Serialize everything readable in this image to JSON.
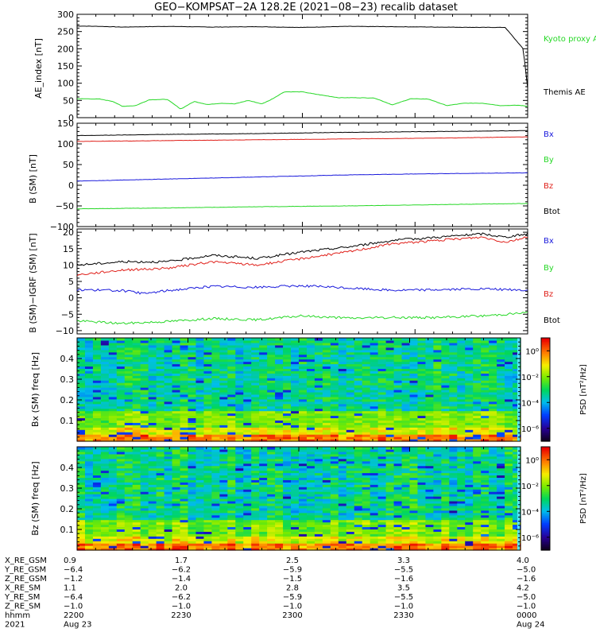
{
  "title": "GEO−KOMPSAT−2A 128.2E (2021−08−23) recalib dataset",
  "colors": {
    "black": "#000000",
    "red": "#e0201a",
    "blue": "#1a1adc",
    "green": "#27d827"
  },
  "chart_data": [
    {
      "type": "line",
      "ylabel": "AE_index [nT]",
      "ylim": [
        0,
        300
      ],
      "yticks": [
        "0",
        "50",
        "100",
        "150",
        "200",
        "250",
        "300"
      ],
      "legend": [
        "Kyoto proxy AE",
        "Themis AE"
      ],
      "series": [
        {
          "name": "Themis AE",
          "color": "#000000",
          "x": [
            0,
            0.05,
            0.1,
            0.2,
            0.3,
            0.4,
            0.5,
            0.6,
            0.7,
            0.8,
            0.9,
            0.95,
            0.99,
            1.0
          ],
          "y": [
            266,
            265,
            263,
            265,
            263,
            264,
            262,
            265,
            264,
            263,
            262,
            262,
            200,
            85
          ]
        },
        {
          "name": "Kyoto proxy AE",
          "color": "#27d827",
          "x": [
            0,
            0.05,
            0.08,
            0.1,
            0.13,
            0.16,
            0.2,
            0.23,
            0.26,
            0.29,
            0.32,
            0.35,
            0.38,
            0.41,
            0.43,
            0.46,
            0.5,
            0.53,
            0.58,
            0.62,
            0.66,
            0.7,
            0.74,
            0.78,
            0.82,
            0.86,
            0.9,
            0.94,
            0.98,
            1.0
          ],
          "y": [
            55,
            54,
            47,
            33,
            35,
            52,
            53,
            25,
            47,
            38,
            42,
            40,
            50,
            40,
            52,
            75,
            75,
            68,
            58,
            58,
            57,
            37,
            55,
            54,
            35,
            42,
            42,
            35,
            36,
            33
          ]
        }
      ]
    },
    {
      "type": "line",
      "ylabel": "B (SM) [nT]",
      "ylim": [
        -100,
        150
      ],
      "yticks": [
        "−100",
        "−50",
        "0",
        "50",
        "100",
        "150"
      ],
      "legend": [
        "Bx",
        "By",
        "Bz",
        "Btot"
      ],
      "series": [
        {
          "name": "Btot",
          "color": "#000000",
          "x": [
            0,
            0.2,
            0.4,
            0.6,
            0.8,
            1.0
          ],
          "y": [
            120,
            123,
            125,
            128,
            130,
            132
          ]
        },
        {
          "name": "Bz",
          "color": "#e0201a",
          "x": [
            0,
            0.2,
            0.4,
            0.6,
            0.8,
            1.0
          ],
          "y": [
            106,
            108,
            110,
            112,
            114,
            117
          ]
        },
        {
          "name": "Bx",
          "color": "#1a1adc",
          "x": [
            0,
            0.2,
            0.4,
            0.6,
            0.8,
            1.0
          ],
          "y": [
            10,
            15,
            20,
            25,
            28,
            30
          ]
        },
        {
          "name": "By",
          "color": "#27d827",
          "x": [
            0,
            0.2,
            0.4,
            0.6,
            0.8,
            1.0
          ],
          "y": [
            -57,
            -55,
            -52,
            -50,
            -47,
            -44
          ]
        }
      ]
    },
    {
      "type": "line",
      "ylabel": "B (SM)−IGRF (SM) [nT]",
      "ylim": [
        -11,
        21
      ],
      "yticks": [
        "−10",
        "−5",
        "0",
        "5",
        "10",
        "15",
        "20"
      ],
      "legend": [
        "Bx",
        "By",
        "Bz",
        "Btot"
      ],
      "series": [
        {
          "name": "Btot",
          "color": "#000000",
          "x": [
            0,
            0.1,
            0.2,
            0.3,
            0.4,
            0.5,
            0.6,
            0.7,
            0.8,
            0.9,
            0.95,
            1.0
          ],
          "y": [
            10,
            11,
            11,
            13,
            12,
            14,
            15.5,
            17.5,
            18.5,
            19.5,
            18.5,
            19.5
          ]
        },
        {
          "name": "Bz",
          "color": "#e0201a",
          "x": [
            0,
            0.1,
            0.2,
            0.3,
            0.4,
            0.5,
            0.6,
            0.7,
            0.8,
            0.9,
            0.95,
            1.0
          ],
          "y": [
            7,
            8.5,
            9,
            11,
            10,
            12,
            14,
            16.5,
            17.5,
            18.5,
            17,
            18.5
          ]
        },
        {
          "name": "Bx",
          "color": "#1a1adc",
          "x": [
            0,
            0.1,
            0.15,
            0.2,
            0.3,
            0.4,
            0.5,
            0.6,
            0.7,
            0.8,
            0.9,
            1.0
          ],
          "y": [
            2.5,
            2.2,
            1.3,
            2.2,
            3.5,
            3.2,
            3.7,
            3.0,
            2.3,
            2.5,
            2.7,
            2.3
          ]
        },
        {
          "name": "By",
          "color": "#27d827",
          "x": [
            0,
            0.1,
            0.2,
            0.3,
            0.4,
            0.5,
            0.6,
            0.7,
            0.8,
            0.9,
            1.0
          ],
          "y": [
            -7,
            -7.8,
            -7.2,
            -6.3,
            -6.7,
            -5.5,
            -6.2,
            -6.0,
            -6.0,
            -5.5,
            -4.5
          ]
        }
      ]
    },
    {
      "type": "heatmap",
      "ylabel": "Bx (SM) freq [Hz]",
      "ylim": [
        0,
        0.5
      ],
      "yticks": [
        "0.1",
        "0.2",
        "0.3",
        "0.4"
      ],
      "colorbar_label": "PSD [nT²/Hz]",
      "colorbar_ticks": [
        "10⁰",
        "10⁻²",
        "10⁻⁴",
        "10⁻⁶"
      ],
      "colorbar_range_log": [
        -7,
        1
      ]
    },
    {
      "type": "heatmap",
      "ylabel": "Bz (SM) freq [Hz]",
      "ylim": [
        0,
        0.5
      ],
      "yticks": [
        "0.1",
        "0.2",
        "0.3",
        "0.4"
      ],
      "colorbar_label": "PSD [nT²/Hz]",
      "colorbar_ticks": [
        "10⁰",
        "10⁻²",
        "10⁻⁴",
        "10⁻⁶"
      ],
      "colorbar_range_log": [
        -7,
        1
      ]
    }
  ],
  "ephemeris": {
    "row_labels": [
      "X_RE_GSM",
      "Y_RE_GSM",
      "Z_RE_GSM",
      "X_RE_SM",
      "Y_RE_SM",
      "Z_RE_SM",
      "hhmm",
      "2021"
    ],
    "columns": [
      [
        "0.9",
        "−6.4",
        "−1.2",
        "1.1",
        "−6.4",
        "−1.0",
        "2200",
        "Aug 23"
      ],
      [
        "1.7",
        "−6.2",
        "−1.4",
        "2.0",
        "−6.2",
        "−1.0",
        "2230",
        ""
      ],
      [
        "2.5",
        "−5.9",
        "−1.5",
        "2.8",
        "−5.9",
        "−1.0",
        "2300",
        ""
      ],
      [
        "3.3",
        "−5.5",
        "−1.6",
        "3.5",
        "−5.5",
        "−1.0",
        "2330",
        ""
      ],
      [
        "4.0",
        "−5.0",
        "−1.6",
        "4.2",
        "−5.0",
        "−1.0",
        "0000",
        "Aug 24"
      ]
    ]
  }
}
